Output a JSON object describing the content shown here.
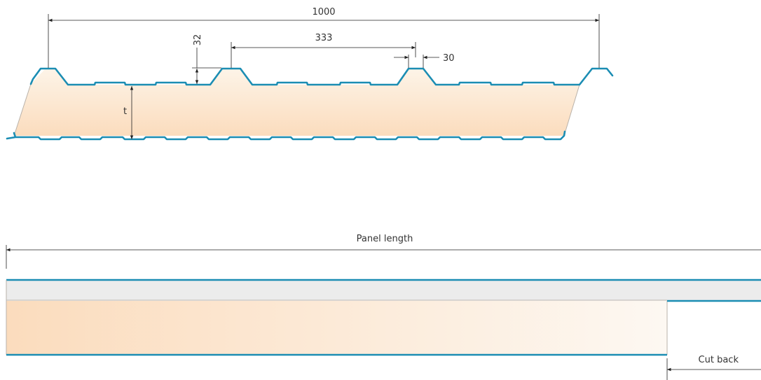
{
  "profile": {
    "dimensions": {
      "overall_width": "1000",
      "rib_pitch": "333",
      "rib_height": "32",
      "rib_top_width": "30",
      "thickness": "t"
    }
  },
  "side_view": {
    "panel_length_label": "Panel length",
    "cut_back_label": "Cut back"
  },
  "colors": {
    "steel_sheet": "#1b8db3",
    "insulation_core_light": "#fdf8f2",
    "insulation_core_dark": "#fbdcbd",
    "top_layer": "#ececec",
    "dimension_lines": "#222222"
  }
}
